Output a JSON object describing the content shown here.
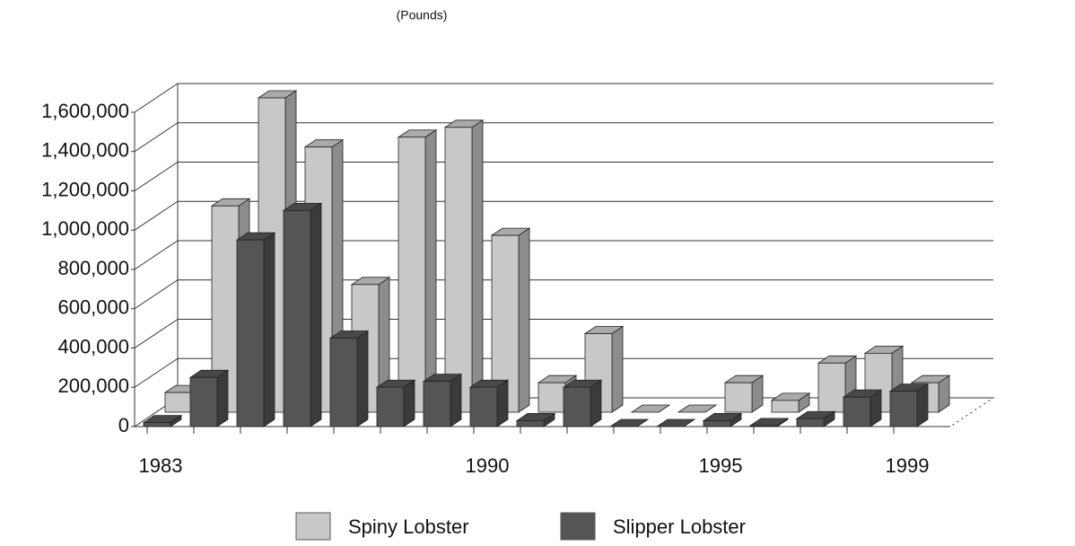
{
  "chart_data": {
    "type": "bar3d",
    "title": "(Pounds)",
    "categories": [
      "1983",
      null,
      null,
      null,
      null,
      null,
      null,
      "1990",
      null,
      null,
      null,
      null,
      "1995",
      null,
      null,
      null,
      "1999"
    ],
    "series": [
      {
        "name": "Spiny Lobster",
        "color": "#c8c8c8",
        "values": [
          100000,
          1050000,
          1600000,
          1350000,
          650000,
          1400000,
          1450000,
          900000,
          150000,
          400000,
          0,
          0,
          150000,
          60000,
          250000,
          300000,
          150000
        ]
      },
      {
        "name": "Slipper Lobster",
        "color": "#555555",
        "values": [
          20000,
          250000,
          950000,
          1100000,
          450000,
          200000,
          230000,
          200000,
          30000,
          200000,
          0,
          0,
          30000,
          5000,
          40000,
          150000,
          180000
        ]
      }
    ],
    "ylim": [
      0,
      1600000
    ],
    "yticks": [
      0,
      {
        "value": 200000,
        "label": "200,000"
      },
      {
        "value": 400000,
        "label": "400,000"
      },
      {
        "value": 600000,
        "label": "600,000"
      },
      {
        "value": 800000,
        "label": "800,000"
      },
      {
        "value": 1000000,
        "label": "1,000,000"
      },
      {
        "value": 1200000,
        "label": "1,200,000"
      },
      {
        "value": 1400000,
        "label": "1,400,000"
      },
      {
        "value": 1600000,
        "label": "1,600,000"
      }
    ],
    "grid": true,
    "legend": "bottom"
  }
}
